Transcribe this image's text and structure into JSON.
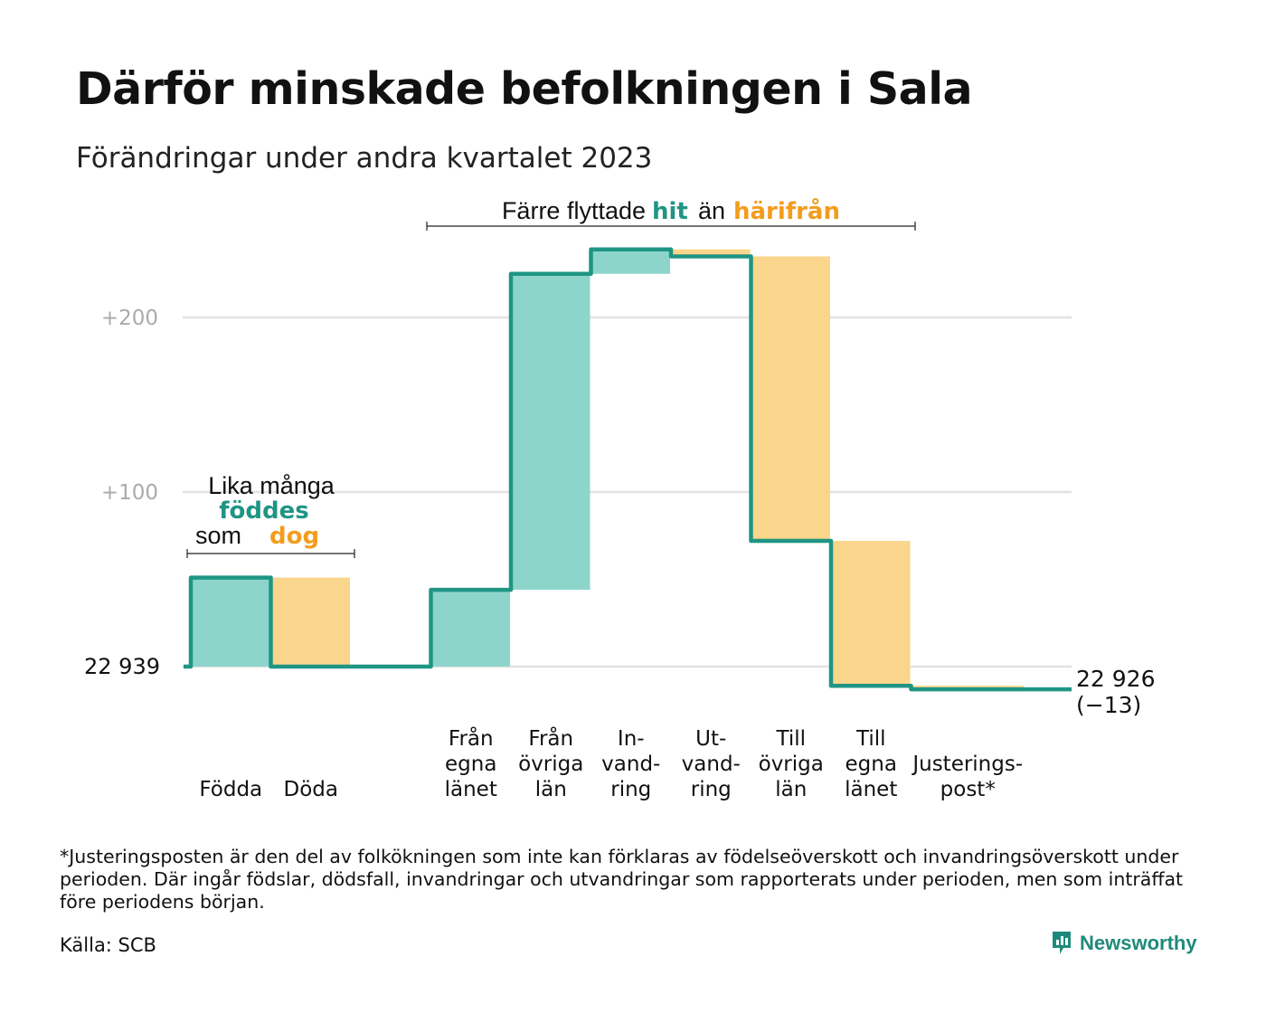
{
  "title": "Därför minskade befolkningen i Sala",
  "subtitle": "Förändringar under andra kvartalet 2023",
  "colors": {
    "inflow": "#8dd5cb",
    "outflow": "#fad58c",
    "line": "#1f9584",
    "orange": "#f39c1d",
    "grid": "#e2e2e2",
    "tick": "#aaaaaa"
  },
  "chart_data": {
    "type": "waterfall",
    "start_value": 22939,
    "start_label": "22  939",
    "end_label": "22 926",
    "end_change": "(−13)",
    "y_ticks": [
      {
        "value": 100,
        "label": "+100"
      },
      {
        "value": 200,
        "label": "+200"
      }
    ],
    "ylim": [
      -15,
      240
    ],
    "steps": [
      {
        "category": "Födda",
        "lines": [
          "Födda"
        ],
        "change": 51,
        "type": "in"
      },
      {
        "category": "Döda",
        "lines": [
          "Döda"
        ],
        "change": -51,
        "type": "out"
      },
      {
        "category": "",
        "lines": [],
        "change": 0,
        "type": "gap"
      },
      {
        "category": "Från egna länet",
        "lines": [
          "Från",
          "egna",
          "länet"
        ],
        "change": 44,
        "type": "in"
      },
      {
        "category": "Från övriga län",
        "lines": [
          "Från",
          "övriga",
          "län"
        ],
        "change": 181,
        "type": "in"
      },
      {
        "category": "Invandring",
        "lines": [
          "In-",
          "vand-",
          "ring"
        ],
        "change": 14,
        "type": "in"
      },
      {
        "category": "Utvandring",
        "lines": [
          "Ut-",
          "vand-",
          "ring"
        ],
        "change": -4,
        "type": "out"
      },
      {
        "category": "Till övriga län",
        "lines": [
          "Till",
          "övriga",
          "län"
        ],
        "change": -163,
        "type": "out"
      },
      {
        "category": "Till egna länet",
        "lines": [
          "Till",
          "egna",
          "länet"
        ],
        "change": -83,
        "type": "out"
      },
      {
        "category": "Justeringspost*",
        "lines": [
          "Justerings-",
          "post*"
        ],
        "change": -2,
        "type": "out",
        "wide": true
      }
    ],
    "annotations": [
      {
        "parts": [
          {
            "line": [
              "Lika många"
            ]
          },
          {
            "line": [
              "föddes"
            ],
            "color": "line"
          },
          {
            "line": [
              "som ",
              "dog"
            ]
          }
        ]
      },
      {
        "parts": [
          {
            "line": [
              "Färre flyttade ",
              "hit",
              " än ",
              "härifrån"
            ]
          }
        ]
      }
    ]
  },
  "annotation_text": {
    "births_line1": "Lika många",
    "births_line2": "föddes",
    "births_line3a": "som",
    "births_line3b": "dog",
    "moves_a": "Färre flyttade",
    "moves_b": "hit",
    "moves_c": "än",
    "moves_d": "härifrån"
  },
  "footnote": "*Justeringsposten är den del av folkökningen som inte kan förklaras av födelseöverskott och invandringsöverskott under perioden. Där ingår födslar, dödsfall, invandringar och utvandringar som rapporterats under perioden, men som inträffat före periodens början.",
  "source": "Källa: SCB",
  "logo": {
    "text": "Newsworthy",
    "icon": "newsworthy-chart-icon"
  }
}
